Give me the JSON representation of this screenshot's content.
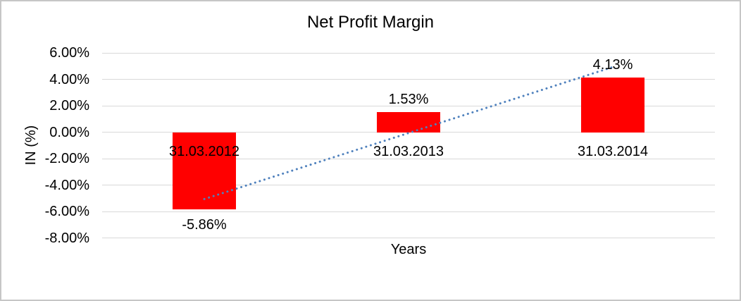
{
  "chart_data": {
    "type": "bar",
    "title": "Net Profit Margin",
    "xlabel": "Years",
    "ylabel": "IN (%)",
    "categories": [
      "31.03.2012",
      "31.03.2013",
      "31.03.2014"
    ],
    "series": [
      {
        "name": "Net Profit Margin",
        "color": "#ff0000",
        "values": [
          -5.86,
          1.53,
          4.13
        ]
      }
    ],
    "data_labels": [
      "-5.86%",
      "1.53%",
      "4.13%"
    ],
    "y_ticks": [
      {
        "value": 6,
        "label": "6.00%"
      },
      {
        "value": 4,
        "label": "4.00%"
      },
      {
        "value": 2,
        "label": "2.00%"
      },
      {
        "value": 0,
        "label": "0.00%"
      },
      {
        "value": -2,
        "label": "-2.00%"
      },
      {
        "value": -4,
        "label": "-4.00%"
      },
      {
        "value": -6,
        "label": "-6.00%"
      },
      {
        "value": -8,
        "label": "-8.00%"
      }
    ],
    "ylim": [
      -8,
      6
    ],
    "grid": true,
    "legend": "none",
    "trendline": {
      "type": "linear",
      "style": "dotted",
      "color": "#4f81bd",
      "start_value": -5.06,
      "end_value": 4.93
    }
  },
  "colors": {
    "bar": "#ff0000",
    "gridline": "#d9d9d9",
    "text": "#000000",
    "trendline": "#4f81bd",
    "frame_border": "#c6c6c6",
    "background": "#ffffff"
  }
}
